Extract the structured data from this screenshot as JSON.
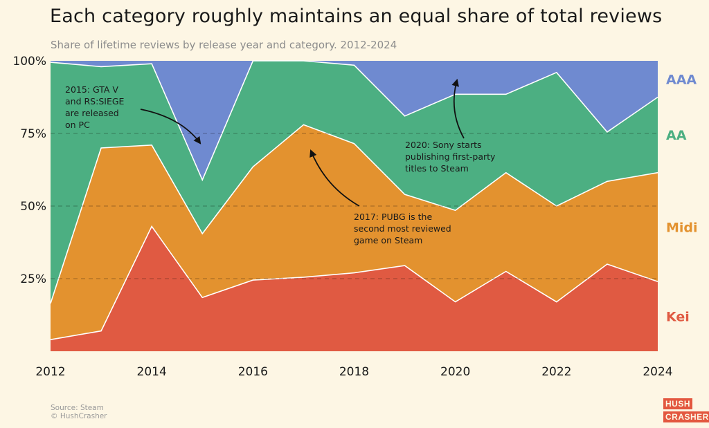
{
  "title": "Each category roughly maintains an equal share of total reviews",
  "subtitle": "Share of lifetime reviews by release year and category. 2012-2024",
  "source": "Source: Steam",
  "copyright": "© HushCrasher",
  "logo": {
    "line1": "HUSH",
    "line2": "CRASHER"
  },
  "chart_data": {
    "type": "area",
    "stacked": true,
    "x": [
      2012,
      2013,
      2014,
      2015,
      2016,
      2017,
      2018,
      2019,
      2020,
      2021,
      2022,
      2023,
      2024
    ],
    "x_ticks": [
      "2012",
      "2014",
      "2016",
      "2018",
      "2020",
      "2022",
      "2024"
    ],
    "y_ticks": [
      "25%",
      "50%",
      "75%",
      "100%"
    ],
    "ylim": [
      0,
      100
    ],
    "series": [
      {
        "name": "Kei",
        "color": "#e05a42",
        "values": [
          4,
          7,
          43,
          18.5,
          24.5,
          25.5,
          27,
          29.5,
          17,
          27.5,
          17,
          30,
          24
        ]
      },
      {
        "name": "Midi",
        "color": "#e3922f",
        "values": [
          12.5,
          63,
          28,
          22,
          39,
          52.5,
          44.5,
          24.5,
          31.5,
          34,
          33,
          28.5,
          37.5
        ]
      },
      {
        "name": "AA",
        "color": "#4caf82",
        "values": [
          83,
          28,
          28,
          18.5,
          36.5,
          22,
          27,
          27,
          40,
          27,
          46,
          17,
          26
        ]
      },
      {
        "name": "AAA",
        "color": "#6f8ad0",
        "values": [
          0.5,
          2,
          1,
          41,
          0,
          0,
          1.5,
          19,
          11.5,
          11.5,
          4,
          24.5,
          12.5
        ]
      }
    ],
    "annotations": [
      {
        "lines": [
          "2015: GTA V",
          "and RS:SIEGE",
          "are released",
          "on PC"
        ]
      },
      {
        "lines": [
          "2017: PUBG is the",
          "second most reviewed",
          "game on Steam"
        ]
      },
      {
        "lines": [
          "2020: Sony starts",
          "publishing first-party",
          "titles to Steam"
        ]
      }
    ]
  }
}
